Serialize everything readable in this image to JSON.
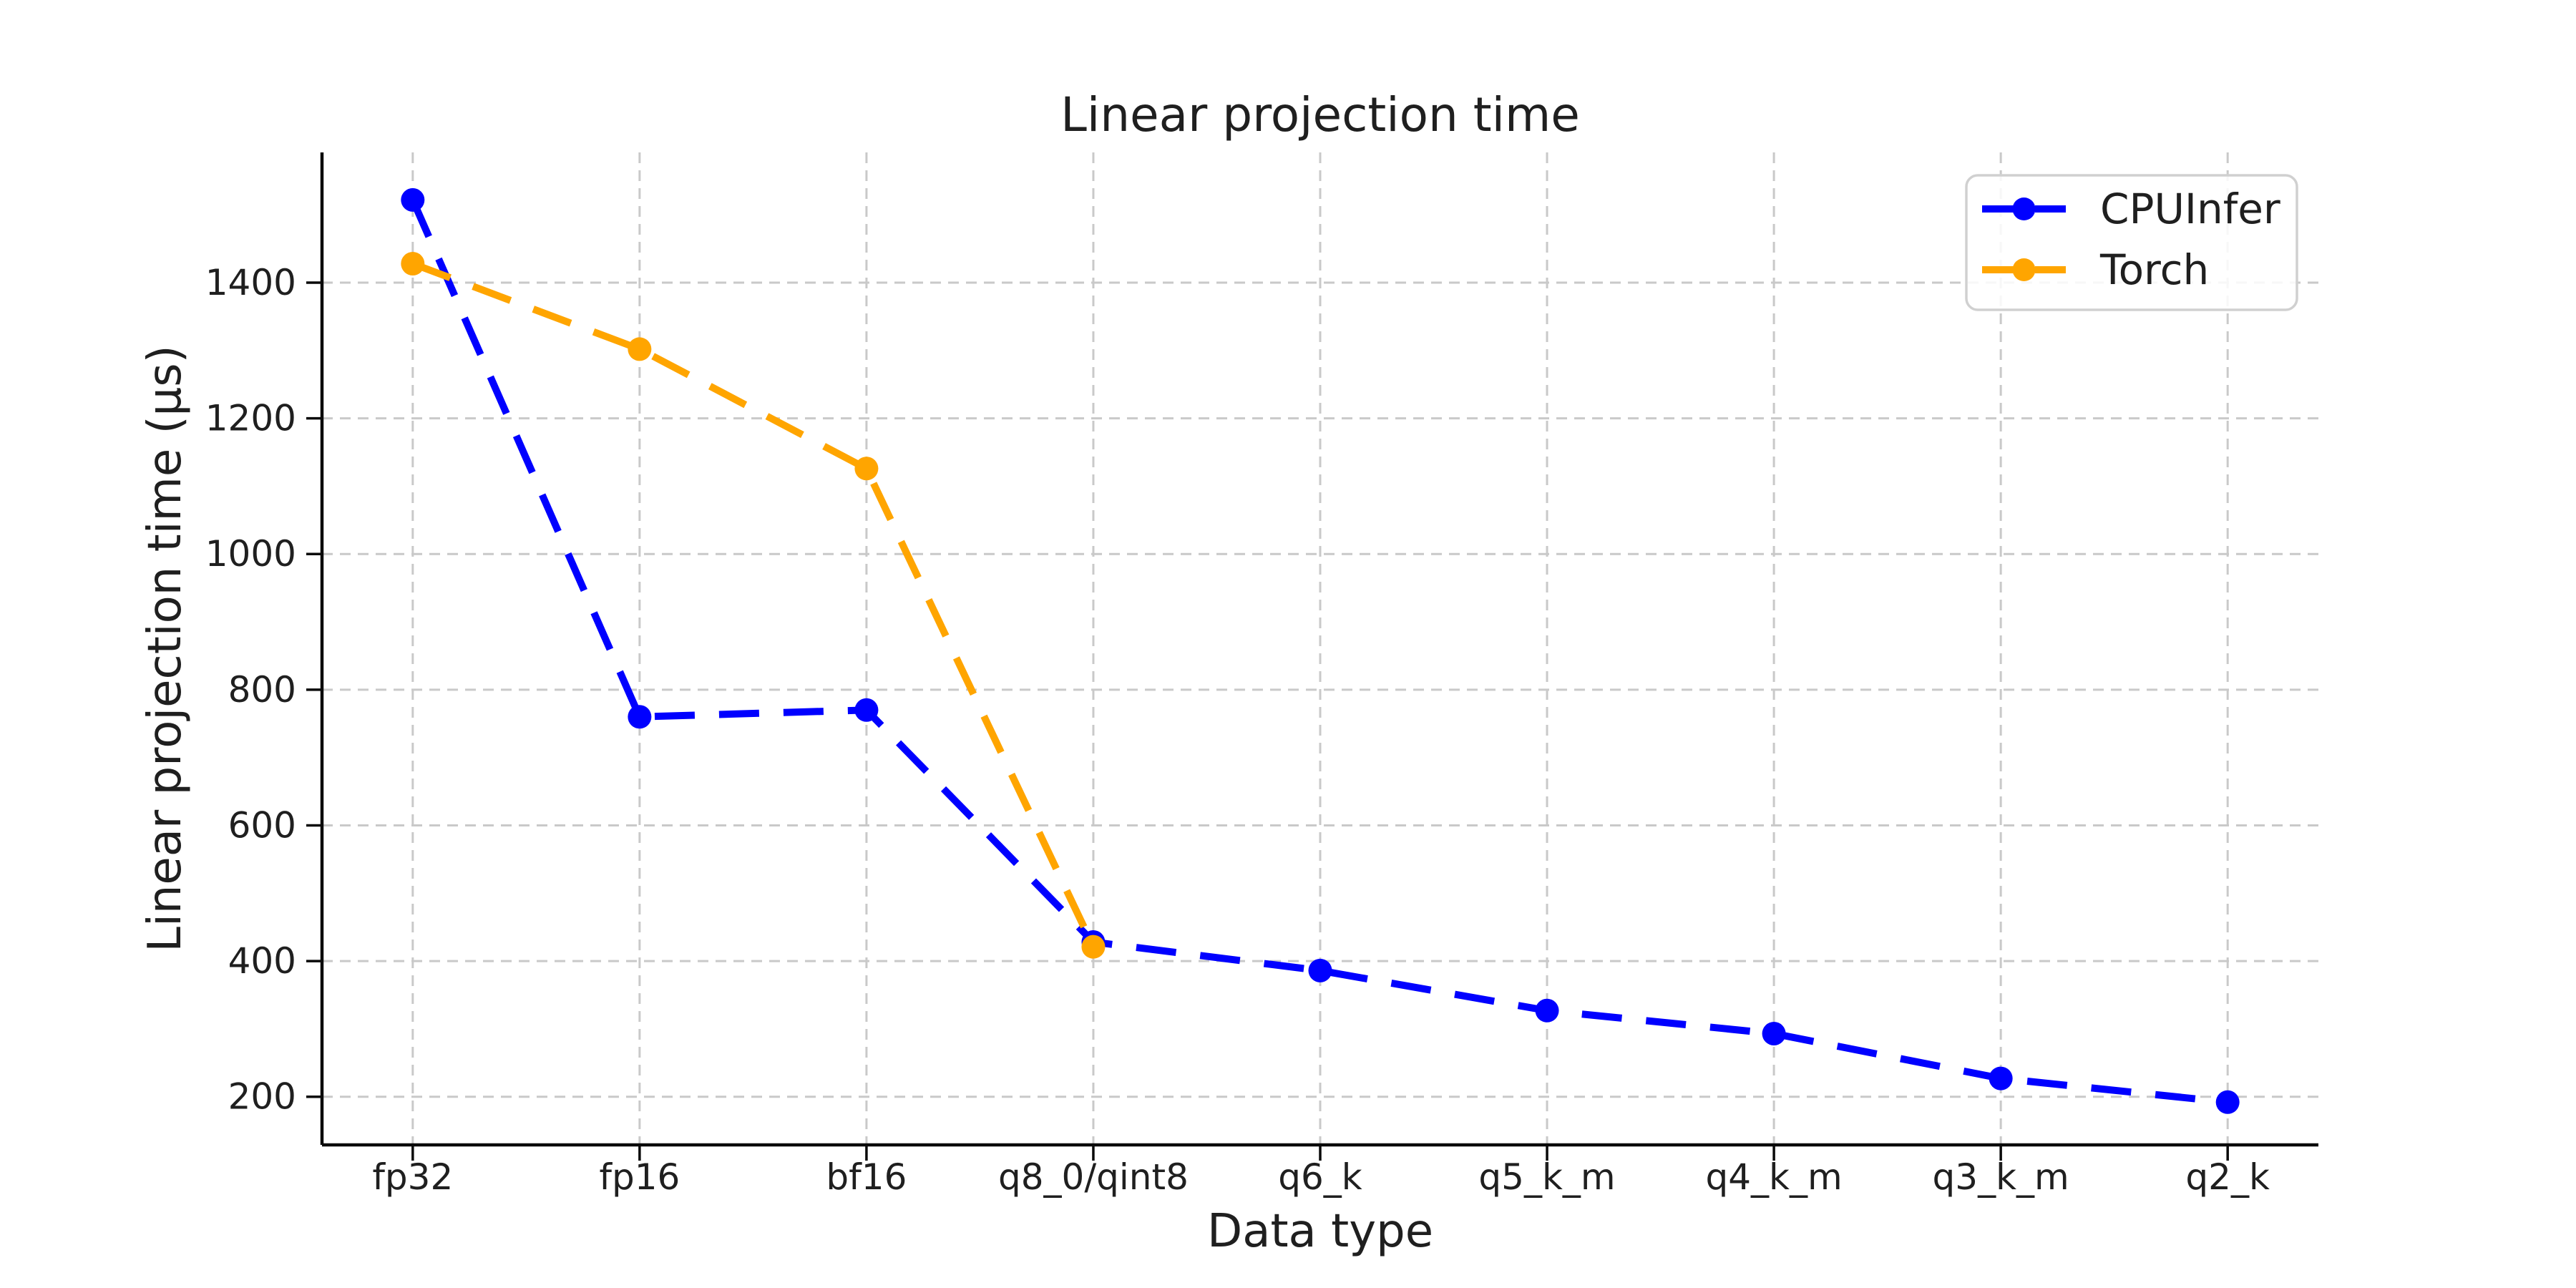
{
  "chart_data": {
    "type": "line",
    "title": "Linear projection time",
    "xlabel": "Data type",
    "ylabel": "Linear projection time (µs)",
    "categories": [
      "fp32",
      "fp16",
      "bf16",
      "q8_0/qint8",
      "q6_k",
      "q5_k_m",
      "q4_k_m",
      "q3_k_m",
      "q2_k"
    ],
    "series": [
      {
        "name": "CPUInfer",
        "color": "#0000ff",
        "values": [
          1522,
          760,
          770,
          428,
          386,
          327,
          293,
          227,
          192
        ]
      },
      {
        "name": "Torch",
        "color": "#ffa500",
        "values": [
          1428,
          1302,
          1126,
          421
        ]
      }
    ],
    "y_ticks": [
      200,
      400,
      600,
      800,
      1000,
      1200,
      1400
    ],
    "y_tick_labels": [
      "200",
      "400",
      "600",
      "800",
      "1000",
      "1200",
      "1400"
    ],
    "ylim": [
      129,
      1592
    ],
    "grid": true,
    "grid_style": "dashed",
    "line_style": "dashed",
    "marker": "circle",
    "legend_position": "upper right",
    "style": {
      "background": "#ffffff",
      "grid_color": "#c9c9c9",
      "spine_color": "#0a0a0a",
      "tick_color": "#0a0a0a",
      "text_color": "#1f1f1f",
      "legend_border_color": "#d0d0d0",
      "legend_bg": "#ffffff"
    }
  }
}
